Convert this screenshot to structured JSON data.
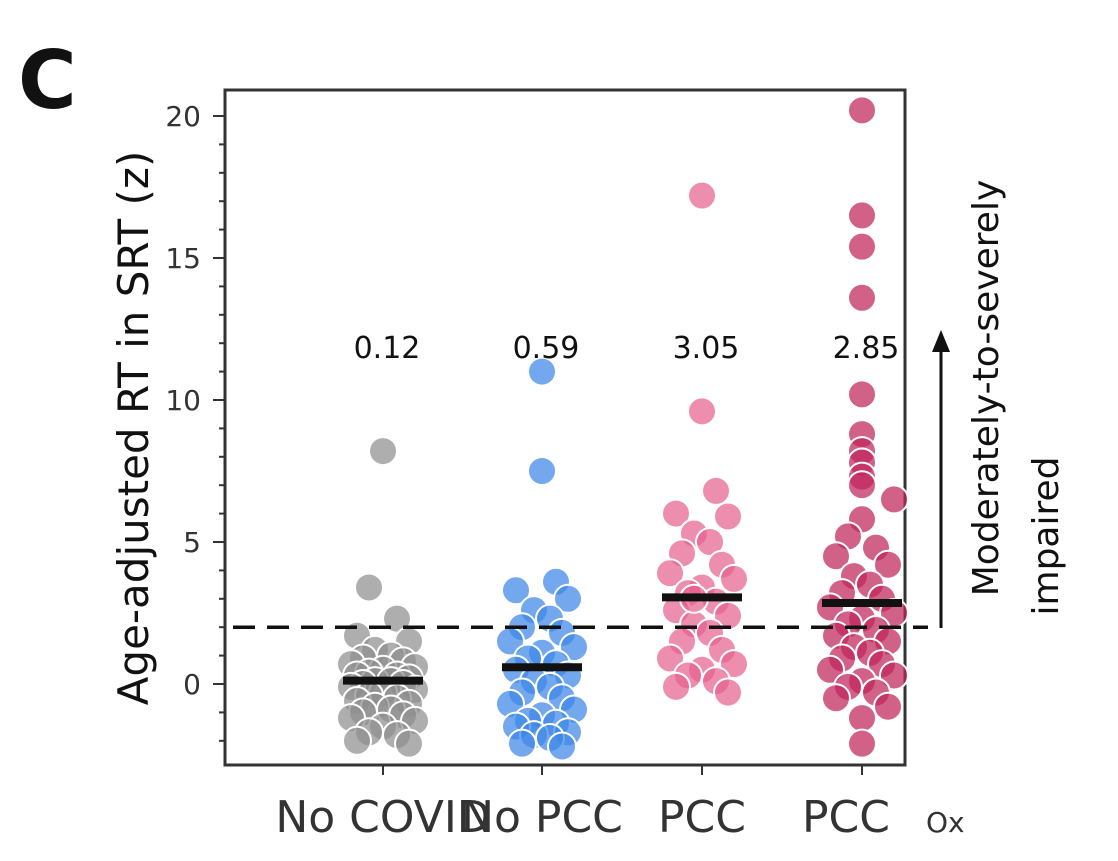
{
  "panel_label": "C",
  "chart_data": {
    "type": "scatter",
    "subtype": "dot-strip-plot",
    "title": "",
    "xlabel": "",
    "ylabel": "Age-adjusted RT in SRT (z)",
    "ylim": [
      -3,
      21
    ],
    "yticks": [
      0,
      5,
      10,
      15,
      20
    ],
    "threshold": 2,
    "categories": [
      {
        "label": "No COVID",
        "sub": ""
      },
      {
        "label": "No PCC",
        "sub": ""
      },
      {
        "label": "PCC",
        "sub": ""
      },
      {
        "label": "PCC",
        "sub": "Ox"
      }
    ],
    "series": [
      {
        "name": "No COVID",
        "color": "#8f8f8f",
        "mean": 0.12,
        "mean_label": "0.12",
        "values": [
          8.2,
          3.4,
          2.3,
          1.7,
          1.5,
          1.2,
          1.0,
          0.9,
          0.8,
          0.7,
          0.6,
          0.5,
          0.4,
          0.3,
          0.3,
          0.2,
          0.1,
          0.1,
          0.0,
          0.0,
          -0.1,
          -0.2,
          -0.3,
          -0.4,
          -0.5,
          -0.6,
          -0.7,
          -0.8,
          -0.9,
          -1.0,
          -1.1,
          -1.2,
          -1.3,
          -1.5,
          -1.7,
          -1.8,
          -2.0,
          -2.1
        ]
      },
      {
        "name": "No PCC",
        "color": "#3d86e8",
        "mean": 0.59,
        "mean_label": "0.59",
        "values": [
          11.0,
          7.5,
          3.6,
          3.3,
          3.0,
          2.6,
          2.3,
          2.0,
          1.8,
          1.5,
          1.3,
          1.1,
          0.9,
          0.7,
          0.5,
          0.3,
          0.1,
          -0.1,
          -0.3,
          -0.5,
          -0.7,
          -0.9,
          -1.1,
          -1.3,
          -1.4,
          -1.5,
          -1.7,
          -1.8,
          -1.9,
          -2.1,
          -2.2
        ]
      },
      {
        "name": "PCC",
        "color": "#e8638f",
        "mean": 3.05,
        "mean_label": "3.05",
        "values": [
          17.2,
          9.6,
          6.8,
          6.0,
          5.9,
          5.3,
          5.0,
          4.6,
          4.2,
          3.9,
          3.7,
          3.4,
          3.2,
          2.9,
          2.6,
          2.4,
          2.1,
          1.8,
          1.5,
          1.2,
          0.9,
          0.7,
          0.5,
          0.3,
          0.1,
          -0.1,
          -0.3,
          3.0
        ]
      },
      {
        "name": "PCCOx",
        "color": "#c1245a",
        "mean": 2.85,
        "mean_label": "2.85",
        "values": [
          20.2,
          16.5,
          15.4,
          13.6,
          10.2,
          8.8,
          8.2,
          7.8,
          7.3,
          7.0,
          6.5,
          5.8,
          5.2,
          4.8,
          4.5,
          4.2,
          3.8,
          3.5,
          3.2,
          3.0,
          2.7,
          2.5,
          2.3,
          2.1,
          1.9,
          1.7,
          1.5,
          1.3,
          1.1,
          0.9,
          0.7,
          0.5,
          0.3,
          0.1,
          -0.1,
          -0.3,
          -0.5,
          -0.8,
          -1.2,
          -2.1
        ]
      }
    ],
    "annotation": {
      "line1": "Moderately-to-severely",
      "line2": "impaired"
    }
  }
}
